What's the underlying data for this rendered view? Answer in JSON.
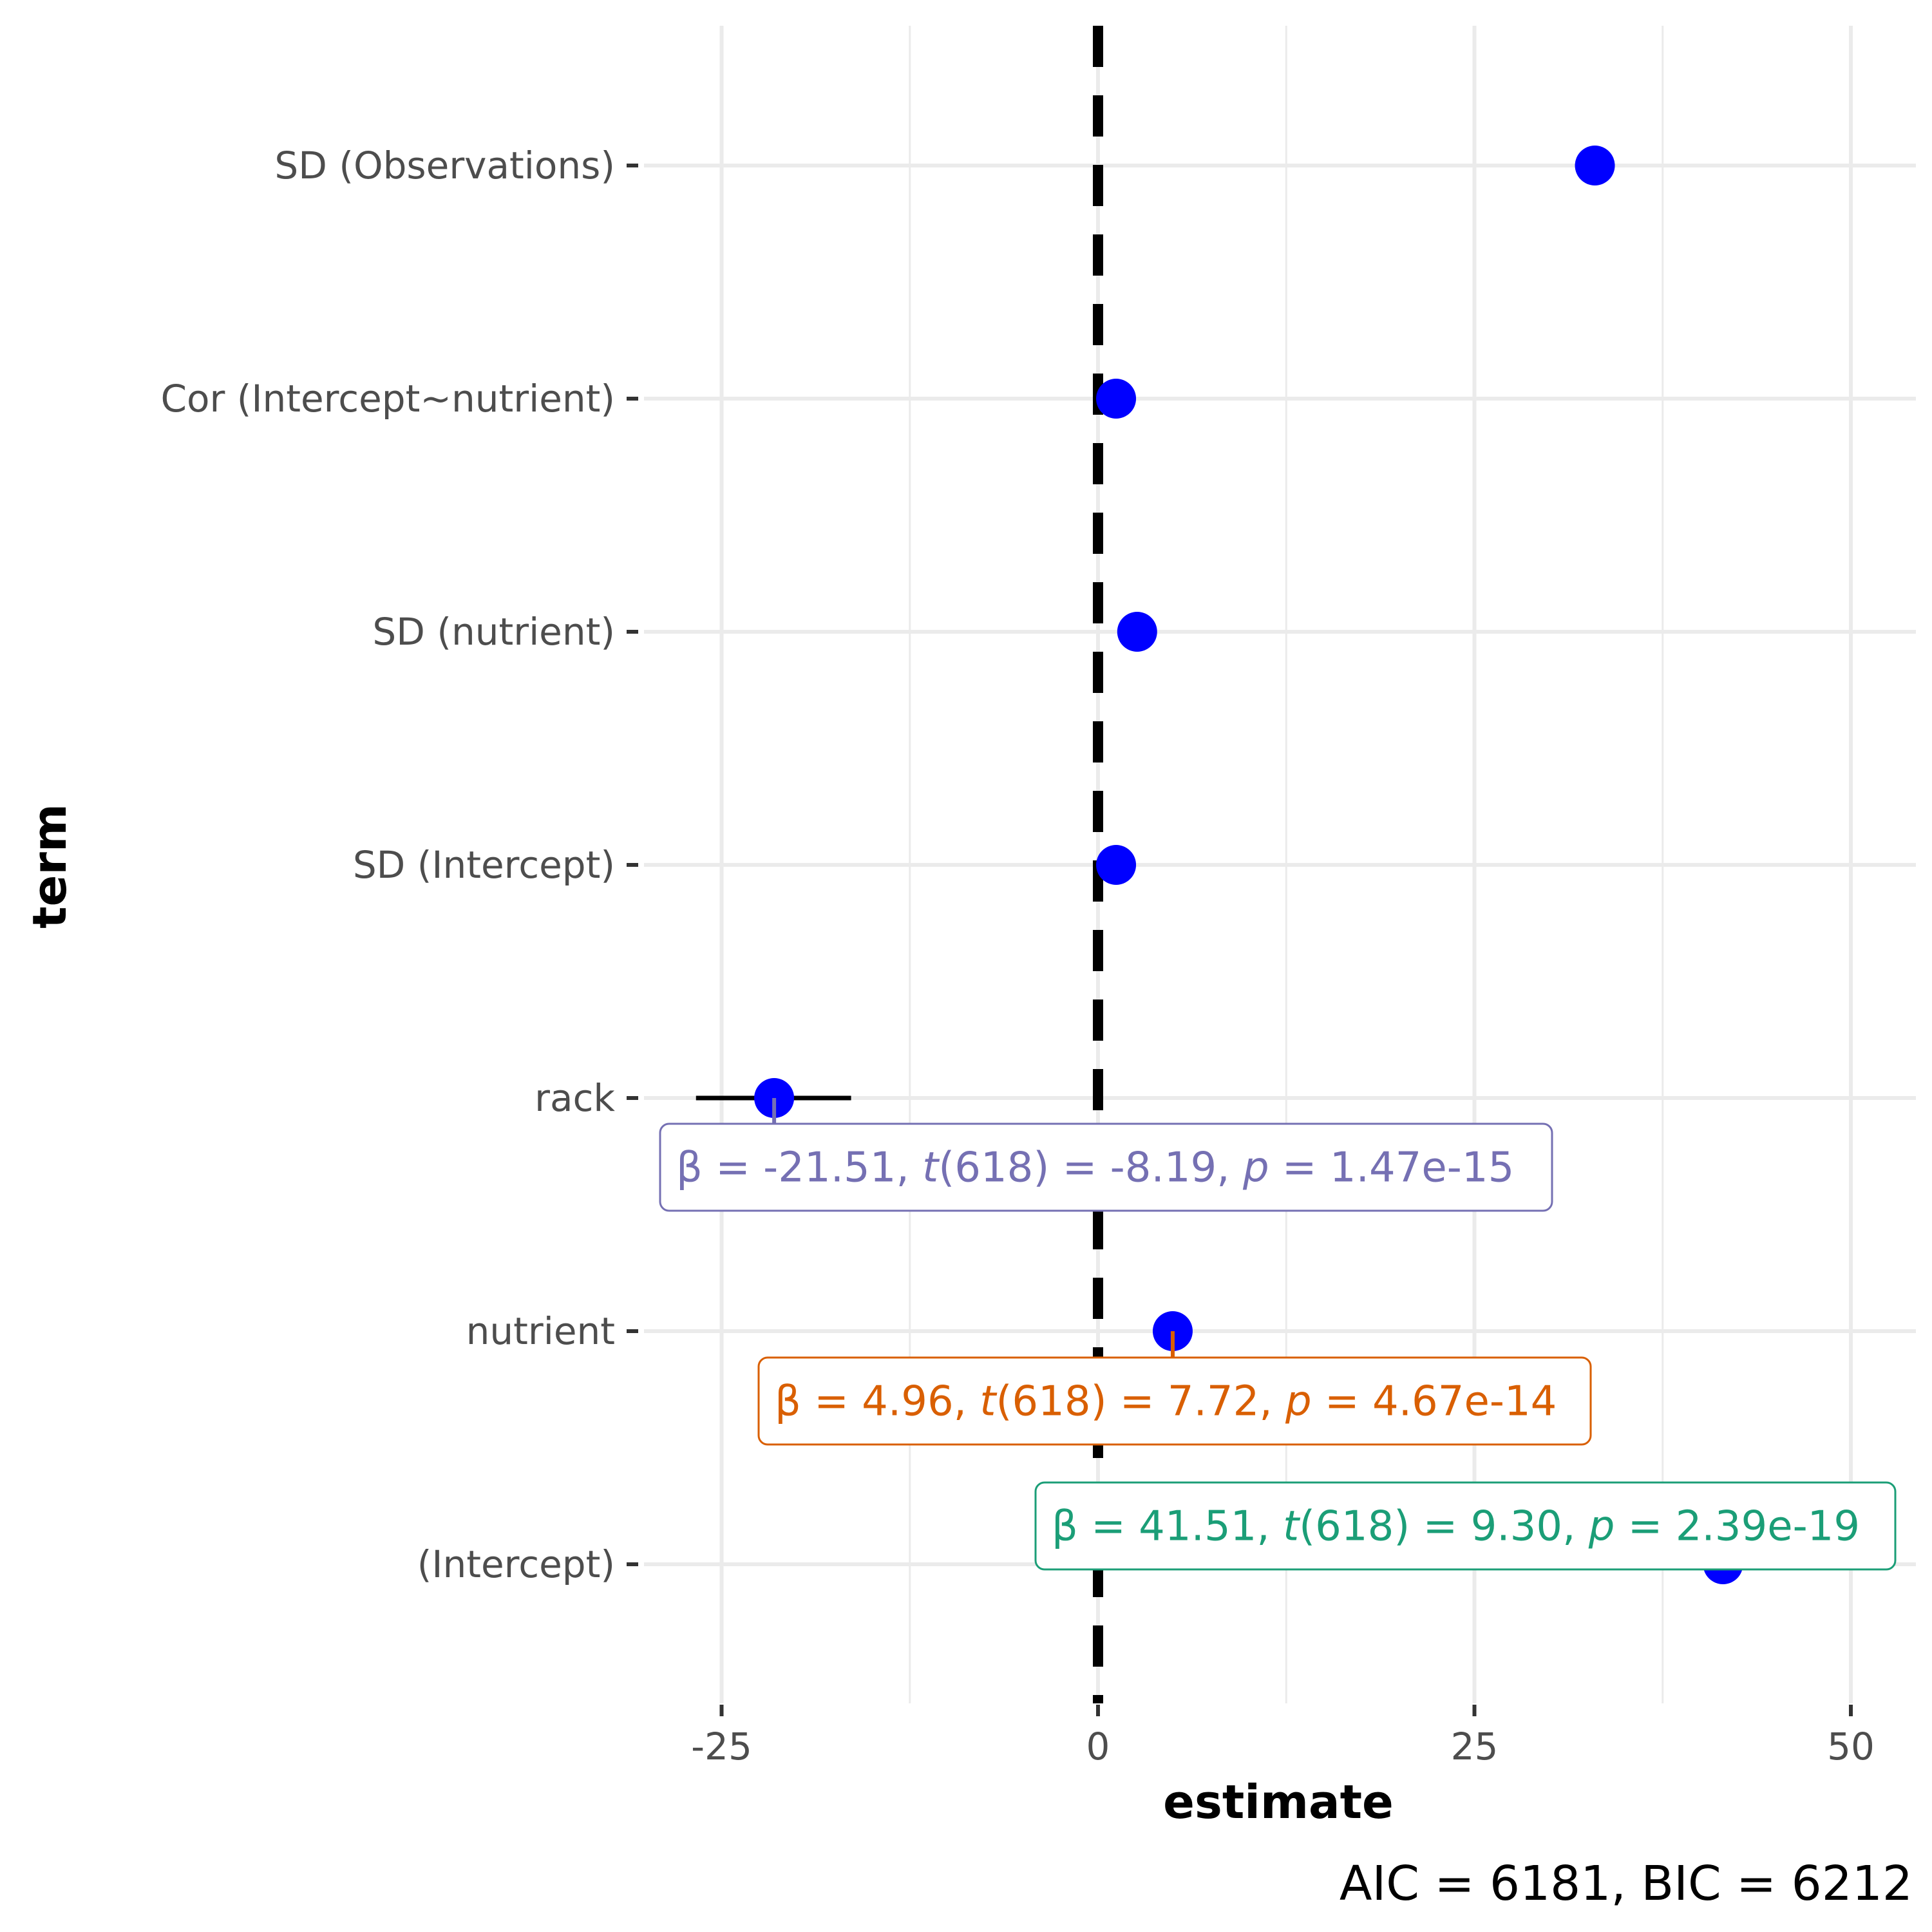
{
  "chart_data": {
    "type": "scatter",
    "xlabel": "estimate",
    "ylabel": "term",
    "xlim": [
      -30,
      54
    ],
    "xticks": [
      -25,
      0,
      25,
      50
    ],
    "xtick_labels": [
      "-25",
      "0",
      "25",
      "50"
    ],
    "reference_line_x": 0,
    "grid": true,
    "terms": [
      {
        "label": "SD (Observations)",
        "estimate": 33.0,
        "ci": null,
        "annotation": null
      },
      {
        "label": "Cor (Intercept~nutrient)",
        "estimate": 1.2,
        "ci": null,
        "annotation": null
      },
      {
        "label": "SD (nutrient)",
        "estimate": 2.6,
        "ci": null,
        "annotation": null
      },
      {
        "label": "SD (Intercept)",
        "estimate": 1.2,
        "ci": null,
        "annotation": null
      },
      {
        "label": "rack",
        "estimate": -21.51,
        "ci": [
          -26.7,
          -16.4
        ],
        "annotation": {
          "beta": "-21.51",
          "df": "618",
          "t": "-8.19",
          "p": "1.47e-15",
          "color": "#7570b3"
        }
      },
      {
        "label": "nutrient",
        "estimate": 4.96,
        "ci": [
          3.7,
          6.2
        ],
        "annotation": {
          "beta": "4.96",
          "df": "618",
          "t": "7.72",
          "p": "4.67e-14",
          "color": "#d95f02"
        }
      },
      {
        "label": "(Intercept)",
        "estimate": 41.51,
        "ci": [
          32.7,
          50.3
        ],
        "annotation": {
          "beta": "41.51",
          "df": "618",
          "t": "9.30",
          "p": "2.39e-19",
          "color": "#1b9e77"
        }
      }
    ],
    "caption": {
      "aic": "6181",
      "bic": "6212"
    },
    "point_color": "#0000ff"
  }
}
